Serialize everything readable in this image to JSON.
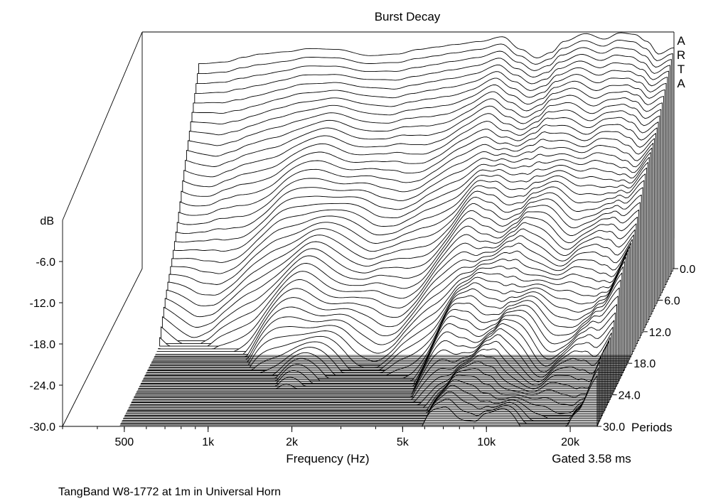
{
  "chart_data": {
    "type": "waterfall",
    "title": "Burst Decay",
    "watermark": "ARTA",
    "xlabel": "Frequency (Hz)",
    "x_scale": "log",
    "x_ticks": [
      "500",
      "1k",
      "2k",
      "5k",
      "10k",
      "20k"
    ],
    "x_tick_values": [
      500,
      1000,
      2000,
      5000,
      10000,
      20000
    ],
    "xlim": [
      300,
      25000
    ],
    "ylabel": "dB",
    "y_ticks": [
      "-6.0",
      "-12.0",
      "-18.0",
      "-24.0",
      "-30.0"
    ],
    "ylim": [
      -30,
      0
    ],
    "zlabel": "Periods",
    "z_ticks": [
      "0.0",
      "6.0",
      "12.0",
      "18.0",
      "24.0",
      "30.0"
    ],
    "z_tick_values": [
      0,
      6,
      12,
      18,
      24,
      30
    ],
    "zlim": [
      0,
      30
    ],
    "gating_note": "Gated 3.58 ms",
    "caption": "TangBand W8-1772 at 1m in Universal Horn",
    "front_slice_db": {
      "frequency_hz": [
        500,
        600,
        700,
        800,
        1000,
        1200,
        1500,
        2000,
        2500,
        3000,
        3500,
        4000,
        5000,
        6000,
        7000,
        8000,
        9000,
        10000,
        12000,
        14000,
        16000,
        18000,
        20000,
        22000,
        25000
      ],
      "level_db": [
        -4.0,
        -3.8,
        -3.2,
        -2.8,
        -2.5,
        -2.1,
        -2.2,
        -3.0,
        -2.8,
        -2.2,
        -1.9,
        -1.6,
        -1.2,
        -0.6,
        -2.2,
        -3.3,
        -2.6,
        -1.2,
        -0.2,
        -0.9,
        -0.1,
        -0.3,
        -1.2,
        -2.8,
        -2.0
      ]
    }
  }
}
